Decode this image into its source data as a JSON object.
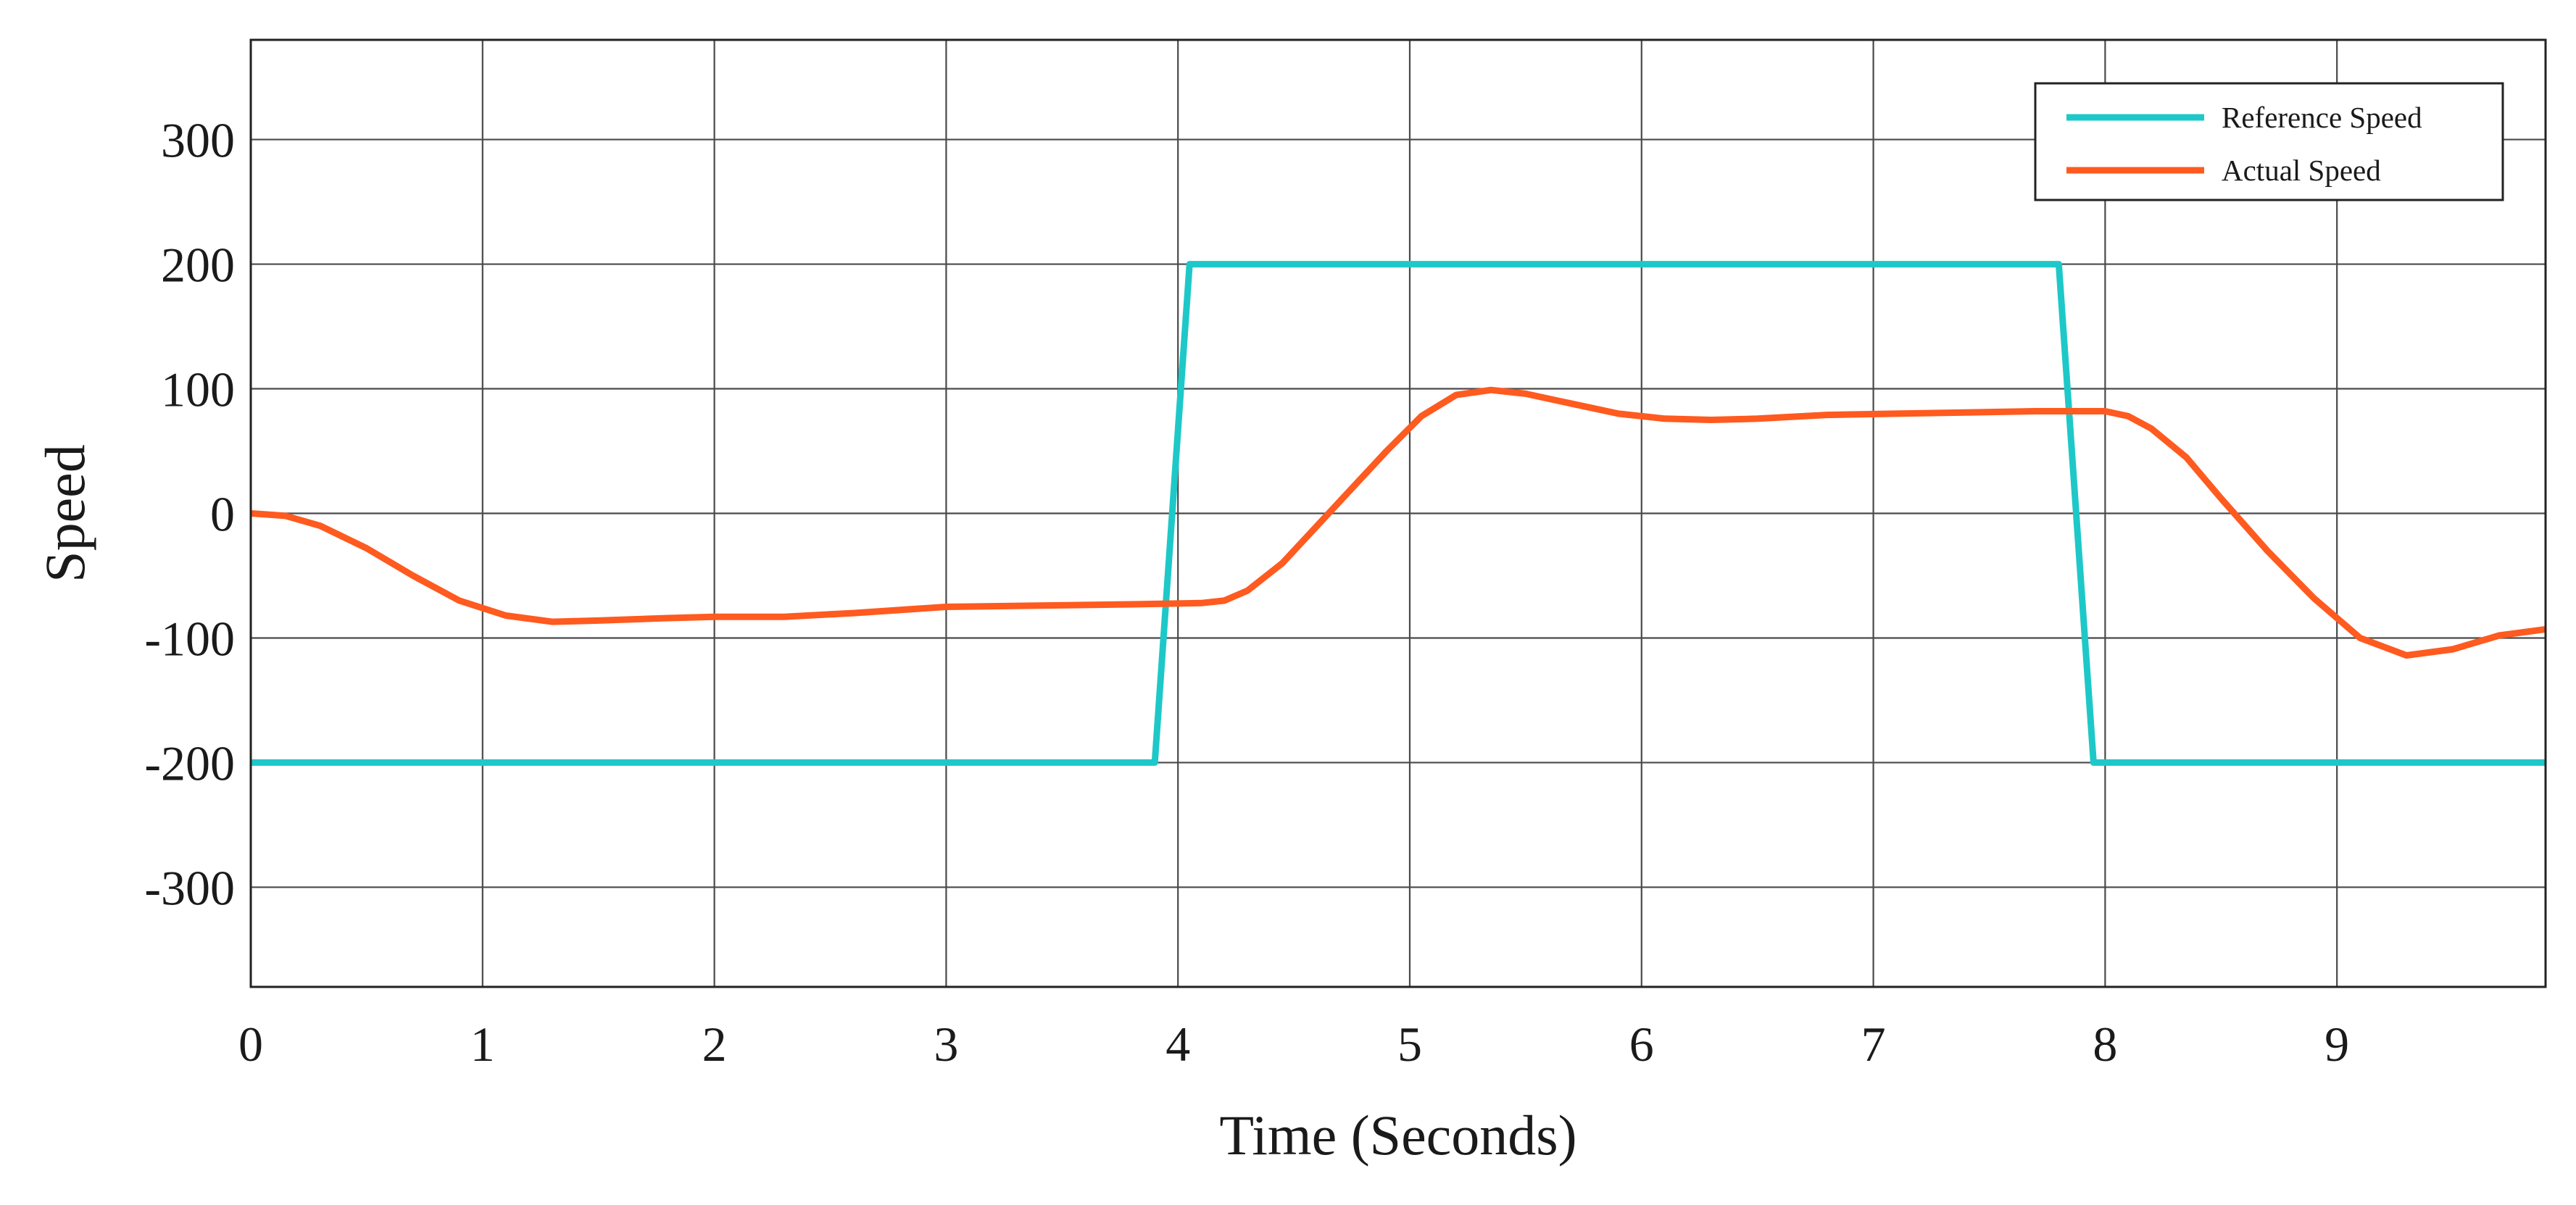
{
  "chart_data": {
    "type": "line",
    "title": "",
    "xlabel": "Time (Seconds)",
    "ylabel": "Speed",
    "xlim": [
      0,
      9.9
    ],
    "ylim": [
      -380,
      380
    ],
    "grid": true,
    "xticks": [
      0,
      1,
      2,
      3,
      4,
      5,
      6,
      7,
      8,
      9
    ],
    "yticks": [
      300,
      200,
      100,
      0,
      -100,
      -200,
      -300
    ],
    "legend_position": "top-right",
    "series": [
      {
        "name": "Reference Speed",
        "color": "#1ec8c8",
        "x": [
          0,
          3.9,
          4.05,
          7.8,
          7.95,
          9.9
        ],
        "y": [
          -200,
          -200,
          200,
          200,
          -200,
          -200
        ]
      },
      {
        "name": "Actual Speed",
        "color": "#ff5a1f",
        "x": [
          0,
          0.15,
          0.3,
          0.5,
          0.7,
          0.9,
          1.1,
          1.3,
          1.5,
          1.8,
          2.0,
          2.3,
          2.6,
          3.0,
          3.4,
          3.8,
          4.1,
          4.2,
          4.3,
          4.45,
          4.6,
          4.75,
          4.9,
          5.05,
          5.2,
          5.35,
          5.5,
          5.7,
          5.9,
          6.1,
          6.3,
          6.5,
          6.8,
          7.1,
          7.4,
          7.7,
          8.0,
          8.1,
          8.2,
          8.35,
          8.5,
          8.7,
          8.9,
          9.1,
          9.3,
          9.5,
          9.7,
          9.9
        ],
        "y": [
          0,
          -2,
          -10,
          -28,
          -50,
          -70,
          -82,
          -87,
          -86,
          -84,
          -83,
          -83,
          -80,
          -75,
          -74,
          -73,
          -72,
          -70,
          -62,
          -40,
          -10,
          20,
          50,
          78,
          95,
          99,
          96,
          88,
          80,
          76,
          75,
          76,
          79,
          80,
          81,
          82,
          82,
          78,
          68,
          45,
          12,
          -30,
          -68,
          -100,
          -114,
          -109,
          -98,
          -93
        ]
      }
    ]
  }
}
